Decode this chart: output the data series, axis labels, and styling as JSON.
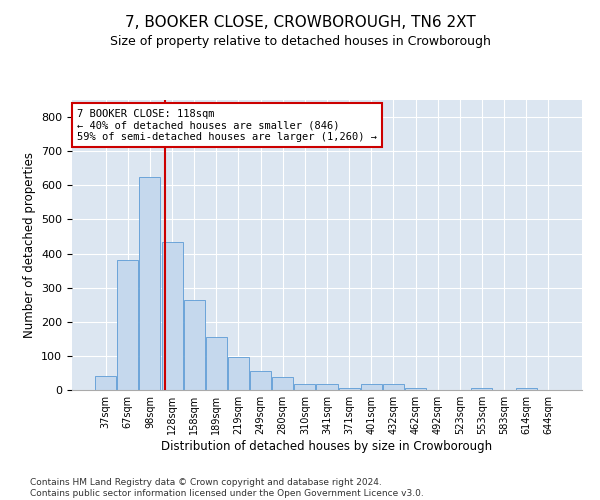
{
  "title": "7, BOOKER CLOSE, CROWBOROUGH, TN6 2XT",
  "subtitle": "Size of property relative to detached houses in Crowborough",
  "xlabel": "Distribution of detached houses by size in Crowborough",
  "ylabel": "Number of detached properties",
  "categories": [
    "37sqm",
    "67sqm",
    "98sqm",
    "128sqm",
    "158sqm",
    "189sqm",
    "219sqm",
    "249sqm",
    "280sqm",
    "310sqm",
    "341sqm",
    "371sqm",
    "401sqm",
    "432sqm",
    "462sqm",
    "492sqm",
    "523sqm",
    "553sqm",
    "583sqm",
    "614sqm",
    "644sqm"
  ],
  "values": [
    40,
    380,
    625,
    435,
    265,
    155,
    97,
    55,
    38,
    18,
    18,
    5,
    18,
    18,
    5,
    0,
    0,
    5,
    0,
    5,
    0
  ],
  "bar_color": "#c5d8ed",
  "bar_edge_color": "#5b9bd5",
  "annotation_lines": [
    "7 BOOKER CLOSE: 118sqm",
    "← 40% of detached houses are smaller (846)",
    "59% of semi-detached houses are larger (1,260) →"
  ],
  "annotation_box_color": "#ffffff",
  "annotation_box_edge": "#cc0000",
  "vline_color": "#cc0000",
  "ylim": [
    0,
    850
  ],
  "yticks": [
    0,
    100,
    200,
    300,
    400,
    500,
    600,
    700,
    800
  ],
  "plot_bg_color": "#dce6f1",
  "footer": "Contains HM Land Registry data © Crown copyright and database right 2024.\nContains public sector information licensed under the Open Government Licence v3.0.",
  "title_fontsize": 11,
  "subtitle_fontsize": 9,
  "xlabel_fontsize": 8.5,
  "ylabel_fontsize": 8.5,
  "tick_fontsize": 8,
  "footer_fontsize": 6.5,
  "vline_x": 2.67
}
